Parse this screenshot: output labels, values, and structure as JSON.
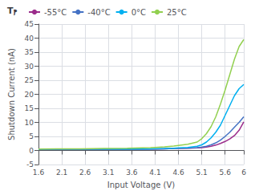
{
  "chart_data": {
    "type": "line",
    "title": "Tⲣ",
    "xlabel": "Input Voltage (V)",
    "ylabel": "Shutdown Current (nA)",
    "xlim": [
      1.6,
      6.0
    ],
    "ylim": [
      -5,
      45
    ],
    "xticks": [
      1.6,
      2.1,
      2.6,
      3.1,
      3.6,
      4.1,
      4.6,
      5.1,
      5.6,
      6
    ],
    "yticks": [
      -5,
      0,
      5,
      10,
      15,
      20,
      25,
      30,
      35,
      40,
      45
    ],
    "x": [
      1.6,
      2.0,
      2.5,
      3.0,
      3.5,
      4.0,
      4.1,
      4.3,
      4.5,
      4.6,
      4.8,
      5.0,
      5.1,
      5.2,
      5.3,
      5.4,
      5.5,
      5.6,
      5.7,
      5.8,
      5.9,
      6.0
    ],
    "series": [
      {
        "name": "-55°C",
        "color": "#9b2d8b",
        "values": [
          0.4,
          0.4,
          0.4,
          0.4,
          0.4,
          0.5,
          0.5,
          0.6,
          0.7,
          0.7,
          0.8,
          0.9,
          1.0,
          1.2,
          1.5,
          1.9,
          2.5,
          3.2,
          4.1,
          5.3,
          7.2,
          10.2
        ]
      },
      {
        "name": "-40°C",
        "color": "#4472c4",
        "values": [
          0.4,
          0.4,
          0.4,
          0.4,
          0.4,
          0.5,
          0.5,
          0.6,
          0.7,
          0.75,
          0.85,
          1.0,
          1.2,
          1.5,
          2.0,
          2.7,
          3.7,
          5.0,
          6.5,
          8.3,
          10.0,
          12.0
        ]
      },
      {
        "name": "0°C",
        "color": "#00b0f0",
        "values": [
          0.5,
          0.5,
          0.5,
          0.5,
          0.5,
          0.6,
          0.65,
          0.7,
          0.8,
          0.9,
          1.1,
          1.5,
          2.0,
          3.0,
          4.5,
          6.5,
          9.0,
          12.5,
          16.0,
          19.5,
          22.0,
          23.5
        ]
      },
      {
        "name": "25°C",
        "color": "#92d050",
        "values": [
          0.5,
          0.6,
          0.6,
          0.7,
          0.8,
          1.0,
          1.1,
          1.3,
          1.6,
          1.8,
          2.2,
          3.0,
          4.2,
          6.0,
          8.5,
          12.0,
          16.5,
          21.5,
          27.0,
          32.5,
          37.0,
          39.5
        ]
      }
    ],
    "grid": true,
    "legend": "upper left"
  }
}
